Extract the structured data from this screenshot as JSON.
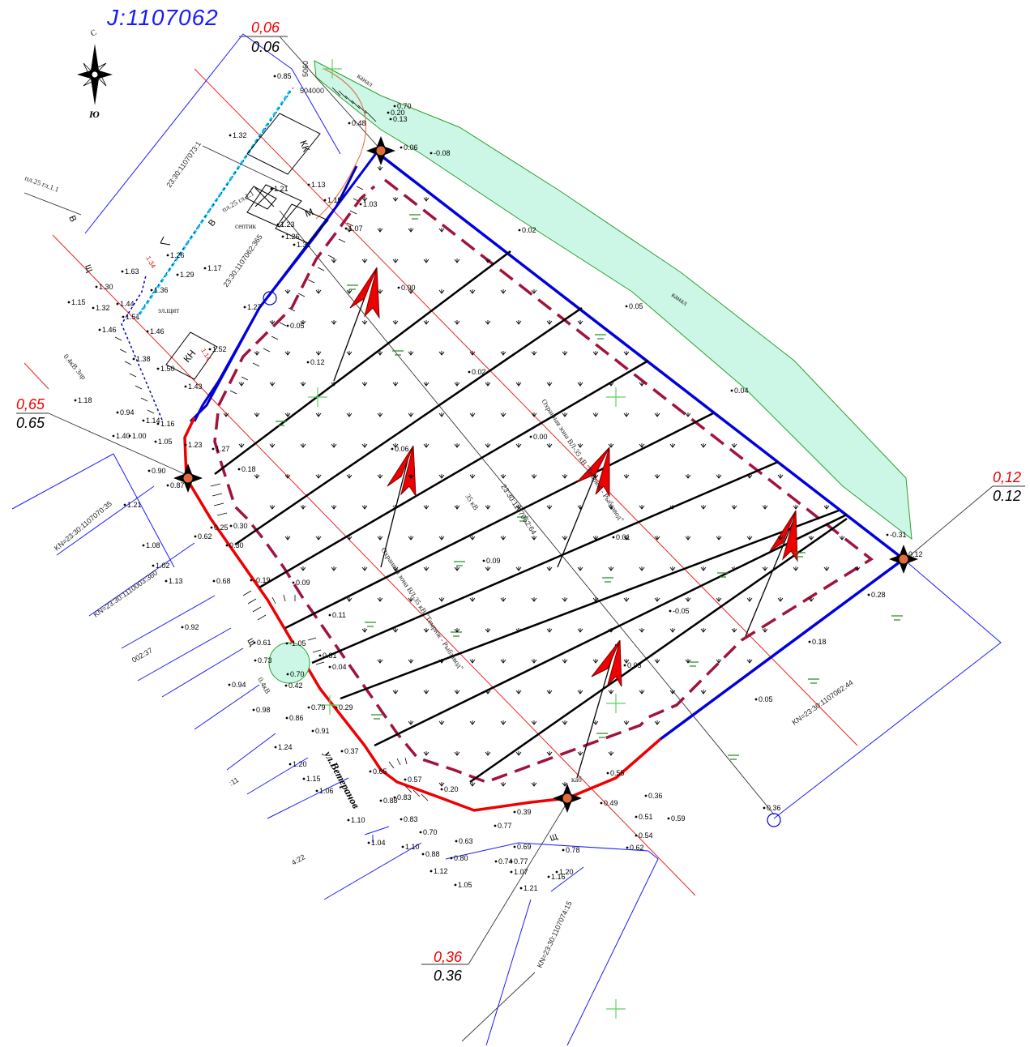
{
  "sheet": {
    "title": "Ј:1107062"
  },
  "compass": {
    "south_label": "Ю",
    "north_label": "С"
  },
  "marks": [
    {
      "id": "m1",
      "red": "0,06",
      "black": "0.06"
    },
    {
      "id": "m2",
      "red": "0,65",
      "black": "0.65"
    },
    {
      "id": "m3",
      "red": "0,12",
      "black": "0.12"
    },
    {
      "id": "m4",
      "red": "0,36",
      "black": "0.36"
    }
  ],
  "labels": {
    "canal_1": "канал",
    "canal_2": "канал",
    "kk": "КК",
    "m": "М",
    "kn": "КН",
    "septik": "септик",
    "el_schit": "эл.щит",
    "cad_1107073": "23:30:1107073:1",
    "cad_1107062_365": "23:30:1107062:365",
    "cad_1107062_64": "23:30:1107062:64",
    "kn_1107070": "KN=23:30:1107070:35",
    "kn_1110003": "KN=23:30:1110003:360",
    "kn_1107062_44": "KN=23:30:1107062:44",
    "kn_1107074": "KN=23:30:1107074:15",
    "zone_1": "Охранная зона ВЛ-35 кВ \"Темрюк - Рыбзавод\"",
    "zone_2": "Охранная зона ВЛ-35 кВ \"Темрюк - Рыбзавод\"",
    "vl35": "35 кВ",
    "street": "ул.Ветеранов",
    "vl04_1": "0.4кВ 3пр",
    "vl04_2": "0.4кВ",
    "kab": "каб",
    "shch": "Щ",
    "v1": "В",
    "v2": "В",
    "num_134": "1.34",
    "num_114": "1.14",
    "cut_37": "002:37",
    "cut_11": ":11",
    "cut_22": "4:22",
    "pl25_1": "пл.25 гл.1.1",
    "pl25_2": "пл.25 гл.1.1",
    "coord_1": "504000",
    "coord_2": "5060"
  },
  "spot_heights": [
    {
      "t": "0.85"
    },
    {
      "t": "1.32"
    },
    {
      "t": "0.48"
    },
    {
      "t": "0.06"
    },
    {
      "t": "-0.08"
    },
    {
      "t": "0.70"
    },
    {
      "t": "0.20"
    },
    {
      "t": "0.13"
    },
    {
      "t": "1.13"
    },
    {
      "t": "1.21"
    },
    {
      "t": "1.19"
    },
    {
      "t": "1.23"
    },
    {
      "t": "1.03"
    },
    {
      "t": "1.26"
    },
    {
      "t": "1.31"
    },
    {
      "t": "1.07"
    },
    {
      "t": "0.02"
    },
    {
      "t": "1.63"
    },
    {
      "t": "1.26"
    },
    {
      "t": "1.29"
    },
    {
      "t": "1.17"
    },
    {
      "t": "1.30"
    },
    {
      "t": "1.36"
    },
    {
      "t": "1.15"
    },
    {
      "t": "1.32"
    },
    {
      "t": "1.44"
    },
    {
      "t": "1.51"
    },
    {
      "t": "1.27"
    },
    {
      "t": "1.46"
    },
    {
      "t": "1.46"
    },
    {
      "t": "0.05"
    },
    {
      "t": "0.00"
    },
    {
      "t": "1.38"
    },
    {
      "t": "1.52"
    },
    {
      "t": "1.50"
    },
    {
      "t": "1.43"
    },
    {
      "t": "0.12"
    },
    {
      "t": "0.02"
    },
    {
      "t": "0.05"
    },
    {
      "t": "1.18"
    },
    {
      "t": "0.94"
    },
    {
      "t": "1.14"
    },
    {
      "t": "1.16"
    },
    {
      "t": "1.05"
    },
    {
      "t": "1.23"
    },
    {
      "t": "1.27"
    },
    {
      "t": "0.00"
    },
    {
      "t": "0.04"
    },
    {
      "t": "1.40"
    },
    {
      "t": "1.00"
    },
    {
      "t": "0.18"
    },
    {
      "t": "0.90"
    },
    {
      "t": "0.06"
    },
    {
      "t": "0.87"
    },
    {
      "t": "0.25"
    },
    {
      "t": "0.30"
    },
    {
      "t": "1.21"
    },
    {
      "t": "0.62"
    },
    {
      "t": "0.30"
    },
    {
      "t": "0.01"
    },
    {
      "t": "0.09"
    },
    {
      "t": "-0.31"
    },
    {
      "t": "0.12"
    },
    {
      "t": "1.08"
    },
    {
      "t": "1.02"
    },
    {
      "t": "0.68"
    },
    {
      "t": "-0.19"
    },
    {
      "t": "0.09"
    },
    {
      "t": "0.28"
    },
    {
      "t": "1.13"
    },
    {
      "t": "0.11"
    },
    {
      "t": "-0.05"
    },
    {
      "t": "0.92"
    },
    {
      "t": "0.61"
    },
    {
      "t": "-1.05"
    },
    {
      "t": "0.81"
    },
    {
      "t": "0.04"
    },
    {
      "t": "0.18"
    },
    {
      "t": "0.73"
    },
    {
      "t": "0.70"
    },
    {
      "t": "0.42"
    },
    {
      "t": "0.03"
    },
    {
      "t": "0.94"
    },
    {
      "t": "0.05"
    },
    {
      "t": "0.98"
    },
    {
      "t": "0.86"
    },
    {
      "t": "0.29"
    },
    {
      "t": "0.79"
    },
    {
      "t": "1.24"
    },
    {
      "t": "0.37"
    },
    {
      "t": "0.91"
    },
    {
      "t": "1.20"
    },
    {
      "t": "0.57"
    },
    {
      "t": "0.65"
    },
    {
      "t": "1.15"
    },
    {
      "t": "0.55"
    },
    {
      "t": "1.06"
    },
    {
      "t": "0.83"
    },
    {
      "t": "0.20"
    },
    {
      "t": "0.36"
    },
    {
      "t": "0.88"
    },
    {
      "t": "0.49"
    },
    {
      "t": "0.39"
    },
    {
      "t": "0.59"
    },
    {
      "t": "0.51"
    },
    {
      "t": "1.10"
    },
    {
      "t": "0.83"
    },
    {
      "t": "0.77"
    },
    {
      "t": "0.54"
    },
    {
      "t": "0.70"
    },
    {
      "t": "0.63"
    },
    {
      "t": "0.69"
    },
    {
      "t": "1.04"
    },
    {
      "t": "1.10"
    },
    {
      "t": "0.88"
    },
    {
      "t": "0.80"
    },
    {
      "t": "0.74"
    },
    {
      "t": "0.77"
    },
    {
      "t": "0.78"
    },
    {
      "t": "0.62"
    },
    {
      "t": "1.12"
    },
    {
      "t": "1.07"
    },
    {
      "t": "1.20"
    },
    {
      "t": "1.05"
    },
    {
      "t": "1.21"
    },
    {
      "t": "1.16"
    },
    {
      "t": "0.36"
    }
  ],
  "colors": {
    "boundary_blue": "#0000dd",
    "plot_red": "#ee0000",
    "dash_maroon": "#a0143c",
    "canal_fill": "#ccf7e6",
    "canal_stroke": "#2aa02a",
    "thin_red": "#ee2222",
    "cyan": "#00c8e0"
  }
}
